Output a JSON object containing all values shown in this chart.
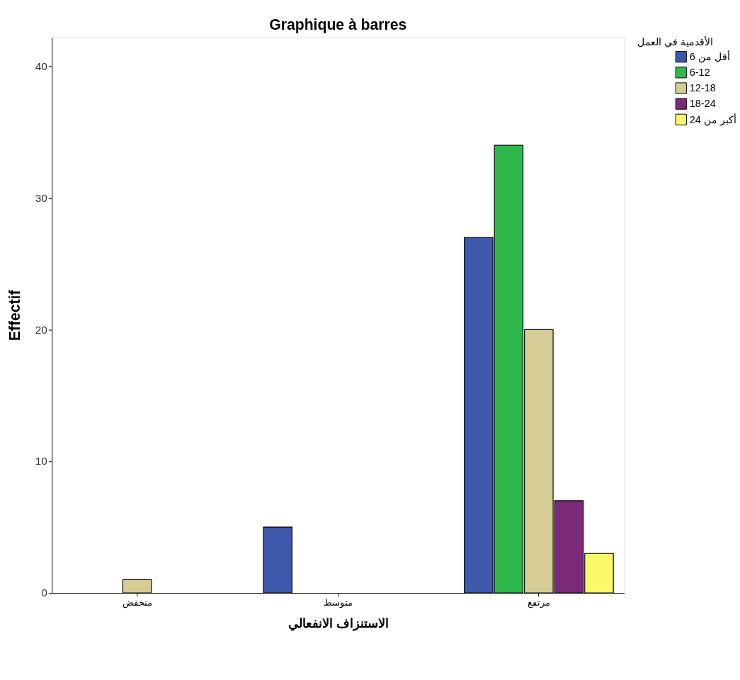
{
  "chart_data": {
    "type": "bar",
    "title": "Graphique à barres",
    "xlabel": "الاستنزاف الانفعالي",
    "ylabel": "Effectif",
    "legend_title": "الأقدمية في العمل",
    "categories": [
      "منخفض",
      "متوسط",
      "مرتفع"
    ],
    "series": [
      {
        "name": "أقل من 6",
        "color": "#3e58ac",
        "values": [
          null,
          5,
          27
        ]
      },
      {
        "name": "6-12",
        "color": "#2eb84b",
        "values": [
          null,
          null,
          34
        ]
      },
      {
        "name": "12-18",
        "color": "#d5cd95",
        "values": [
          1,
          null,
          20
        ]
      },
      {
        "name": "18-24",
        "color": "#7b2a78",
        "values": [
          null,
          null,
          7
        ]
      },
      {
        "name": "أكبر من 24",
        "color": "#fbf86a",
        "values": [
          null,
          null,
          3
        ]
      }
    ],
    "ylim": [
      0,
      42.2
    ],
    "yticks": [
      0,
      10,
      20,
      30,
      40
    ],
    "grid": false,
    "legend": "top right"
  }
}
